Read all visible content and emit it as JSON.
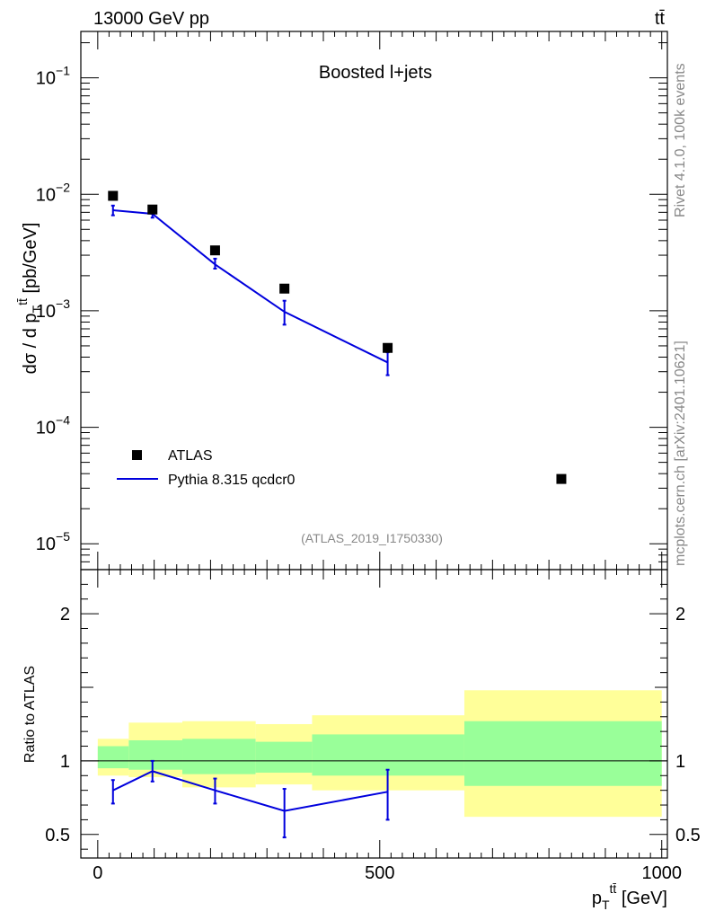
{
  "header": {
    "left_label": "13000 GeV pp",
    "right_label": "tt̄"
  },
  "side_labels": {
    "rivet": "Rivet 4.1.0,  100k events",
    "mcplots": "mcplots.cern.ch [arXiv:2401.10621]"
  },
  "chart_data": {
    "type": "line",
    "title": "Boosted l+jets",
    "analysis_tag": "(ATLAS_2019_I1750330)",
    "xlabel": "p_T^{tt̄} [GeV]",
    "xlabel_parts": {
      "p": "p",
      "sub": "T",
      "sup": "tt̄",
      "unit": " [GeV]"
    },
    "ylabel": "dσ / d p_T^{tt̄} [pb/GeV]",
    "ylabel_parts": {
      "pre": "dσ / d p",
      "sub": "T",
      "sup": "tt̄",
      "unit": " [pb/GeV]"
    },
    "xlim": [
      -30,
      1010
    ],
    "x_ticks": [
      "0",
      "500",
      "1000"
    ],
    "main": {
      "yscale": "log",
      "ylim": [
        6e-06,
        0.25
      ],
      "y_ticks": [
        {
          "mant": "10",
          "exp": "−1",
          "value": 0.1
        },
        {
          "mant": "10",
          "exp": "−2",
          "value": 0.01
        },
        {
          "mant": "10",
          "exp": "−3",
          "value": 0.001
        },
        {
          "mant": "10",
          "exp": "−4",
          "value": 0.0001
        },
        {
          "mant": "10",
          "exp": "−5",
          "value": 1e-05
        }
      ]
    },
    "legend": {
      "placement": "lower-left",
      "data_label": "ATLAS",
      "mc_label": "Pythia 8.315 qcdcr0"
    },
    "series": [
      {
        "name": "ATLAS",
        "style": "markers",
        "x": [
          27,
          97,
          208,
          331,
          514,
          822
        ],
        "values": [
          0.0097,
          0.0074,
          0.0033,
          0.00155,
          0.00048,
          3.6e-05
        ]
      },
      {
        "name": "Pythia 8.315 qcdcr0",
        "style": "line",
        "color": "#0000dd",
        "x": [
          27,
          97,
          208,
          331,
          514
        ],
        "values": [
          0.0073,
          0.0068,
          0.0025,
          0.00098,
          0.00036
        ],
        "err_low": [
          0.0066,
          0.0063,
          0.0023,
          0.00076,
          0.00028
        ],
        "err_high": [
          0.008,
          0.0073,
          0.0028,
          0.00122,
          0.00044
        ]
      }
    ],
    "ratio": {
      "ylabel": "Ratio to ATLAS",
      "ylim": [
        0.34,
        2.3
      ],
      "y_ticks": [
        "0.5",
        "1",
        "2"
      ],
      "bands": [
        {
          "x0": 0,
          "x1": 55,
          "yellow": [
            0.9,
            1.15
          ],
          "green": [
            0.95,
            1.1
          ]
        },
        {
          "x0": 55,
          "x1": 150,
          "yellow": [
            0.89,
            1.26
          ],
          "green": [
            0.94,
            1.14
          ]
        },
        {
          "x0": 150,
          "x1": 280,
          "yellow": [
            0.82,
            1.27
          ],
          "green": [
            0.91,
            1.15
          ]
        },
        {
          "x0": 280,
          "x1": 380,
          "yellow": [
            0.84,
            1.25
          ],
          "green": [
            0.92,
            1.13
          ]
        },
        {
          "x0": 380,
          "x1": 650,
          "yellow": [
            0.8,
            1.31
          ],
          "green": [
            0.9,
            1.18
          ]
        },
        {
          "x0": 650,
          "x1": 1000,
          "yellow": [
            0.62,
            1.48
          ],
          "green": [
            0.83,
            1.27
          ]
        }
      ],
      "band_colors": {
        "yellow": "#ffff99",
        "green": "#99ff99"
      },
      "mc": {
        "x": [
          27,
          97,
          208,
          331,
          514
        ],
        "values": [
          0.8,
          0.93,
          0.8,
          0.66,
          0.79
        ],
        "err_low": [
          0.71,
          0.86,
          0.71,
          0.48,
          0.6
        ],
        "err_high": [
          0.87,
          1.0,
          0.88,
          0.81,
          0.94
        ]
      }
    }
  }
}
